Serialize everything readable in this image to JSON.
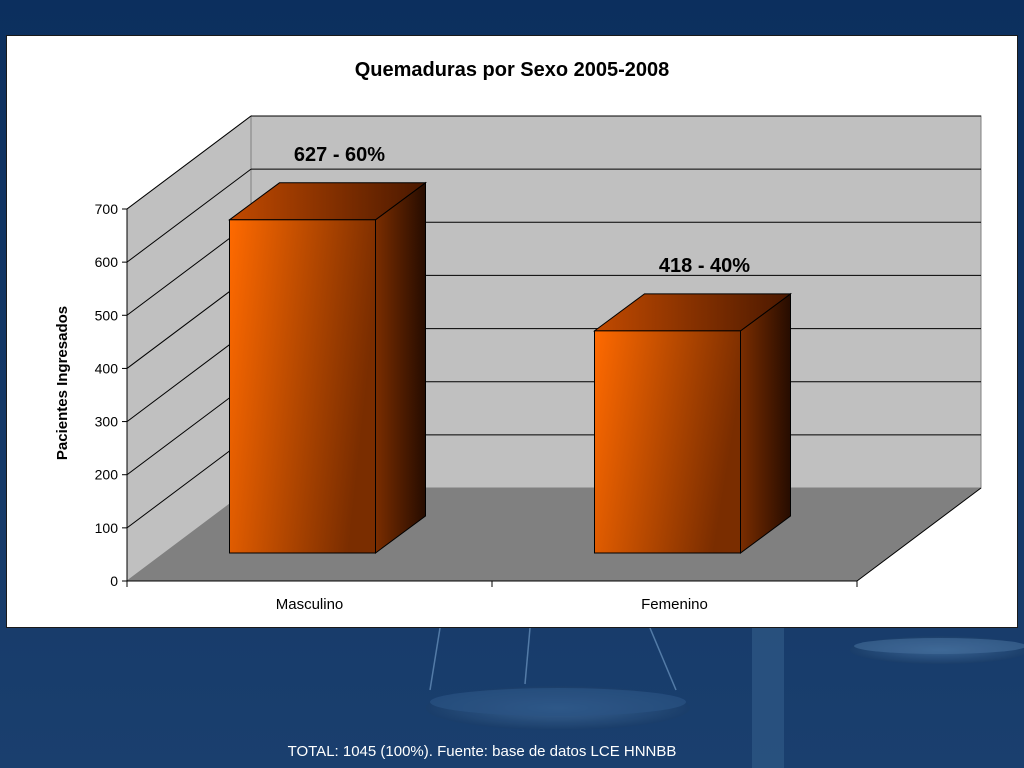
{
  "footer": {
    "note": "TOTAL: 1045  (100%). Fuente: base de datos LCE HNNBB"
  },
  "colors": {
    "background": "#0f3566",
    "bar_front": "#ff6a00",
    "bar_front_dark": "#7a2d00",
    "back_wall": "#c0c0c0",
    "floor": "#808080"
  },
  "chart_data": {
    "type": "bar",
    "title": "Quemaduras por Sexo 2005-2008",
    "xlabel": "",
    "ylabel": "Pacientes Ingresados",
    "categories": [
      "Masculino",
      "Femenino"
    ],
    "values": [
      627,
      418
    ],
    "data_labels": [
      "627 - 60%",
      "418 - 40%"
    ],
    "ylim": [
      0,
      700
    ],
    "yticks": [
      0,
      100,
      200,
      300,
      400,
      500,
      600,
      700
    ],
    "ytick_labels": [
      "0",
      "100",
      "200",
      "300",
      "400",
      "500",
      "600",
      "700"
    ],
    "grid": true,
    "legend": "none",
    "style": "3d"
  }
}
